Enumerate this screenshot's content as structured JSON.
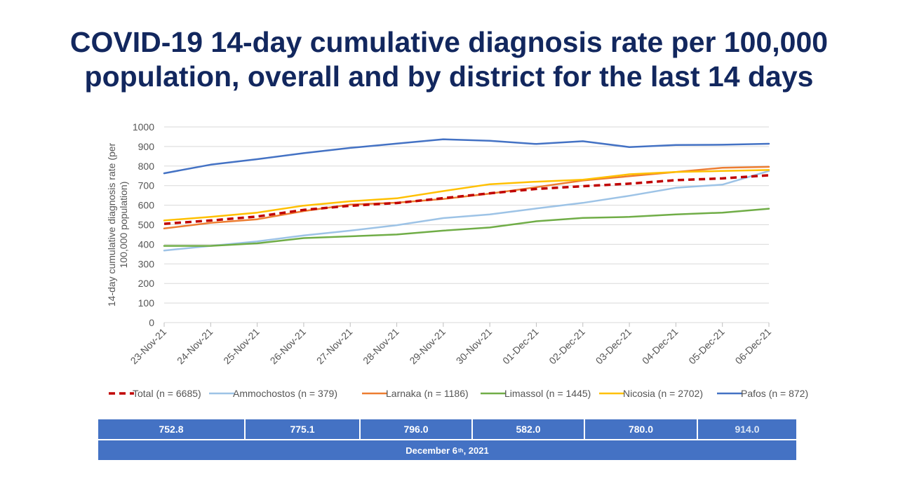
{
  "title": {
    "line1": "COVID-19 14-day cumulative diagnosis rate per 100,000",
    "line2": "population, overall and by district for the last 14 days"
  },
  "chart_data": {
    "type": "line",
    "ylabel_lines": [
      "14-day cumulative diagnosis rate (per",
      "100,000 population)"
    ],
    "xlabel": "",
    "ylim": [
      0,
      1000
    ],
    "yticks": [
      0,
      100,
      200,
      300,
      400,
      500,
      600,
      700,
      800,
      900,
      1000
    ],
    "grid": true,
    "legend_position": "bottom",
    "categories": [
      "23-Nov-21",
      "24-Nov-21",
      "25-Nov-21",
      "26-Nov-21",
      "27-Nov-21",
      "28-Nov-21",
      "29-Nov-21",
      "30-Nov-21",
      "01-Dec-21",
      "02-Dec-21",
      "03-Dec-21",
      "04-Dec-21",
      "05-Dec-21",
      "06-Dec-21"
    ],
    "series": [
      {
        "name": "Total (n = 6685)",
        "color": "#c00000",
        "dashed": true,
        "values": [
          505,
          522,
          542,
          576,
          597,
          611,
          636,
          661,
          683,
          697,
          710,
          728,
          737,
          753
        ]
      },
      {
        "name": "Ammochostos (n = 379)",
        "color": "#9dc3e6",
        "dashed": false,
        "values": [
          368,
          392,
          415,
          445,
          470,
          498,
          534,
          553,
          583,
          612,
          648,
          689,
          705,
          775
        ]
      },
      {
        "name": "Larnaka (n = 1186)",
        "color": "#ed7d31",
        "dashed": false,
        "values": [
          481,
          510,
          528,
          570,
          603,
          613,
          632,
          659,
          692,
          726,
          748,
          770,
          791,
          796
        ]
      },
      {
        "name": "Limassol (n = 1445)",
        "color": "#70ad47",
        "dashed": false,
        "values": [
          392,
          392,
          405,
          432,
          441,
          450,
          470,
          486,
          518,
          535,
          540,
          553,
          562,
          582
        ]
      },
      {
        "name": "Nicosia (n = 2702)",
        "color": "#ffc000",
        "dashed": false,
        "values": [
          522,
          540,
          562,
          598,
          620,
          635,
          672,
          707,
          720,
          730,
          758,
          770,
          775,
          780
        ]
      },
      {
        "name": "Pafos (n = 872)",
        "color": "#4472c4",
        "dashed": false,
        "values": [
          763,
          807,
          835,
          866,
          893,
          915,
          937,
          929,
          913,
          927,
          897,
          908,
          909,
          914
        ]
      }
    ]
  },
  "summary": {
    "values": [
      "752.8",
      "775.1",
      "796.0",
      "582.0",
      "780.0",
      "914.0"
    ],
    "date_text": "December 6",
    "date_sup": "th",
    "date_suffix": " , 2021"
  }
}
